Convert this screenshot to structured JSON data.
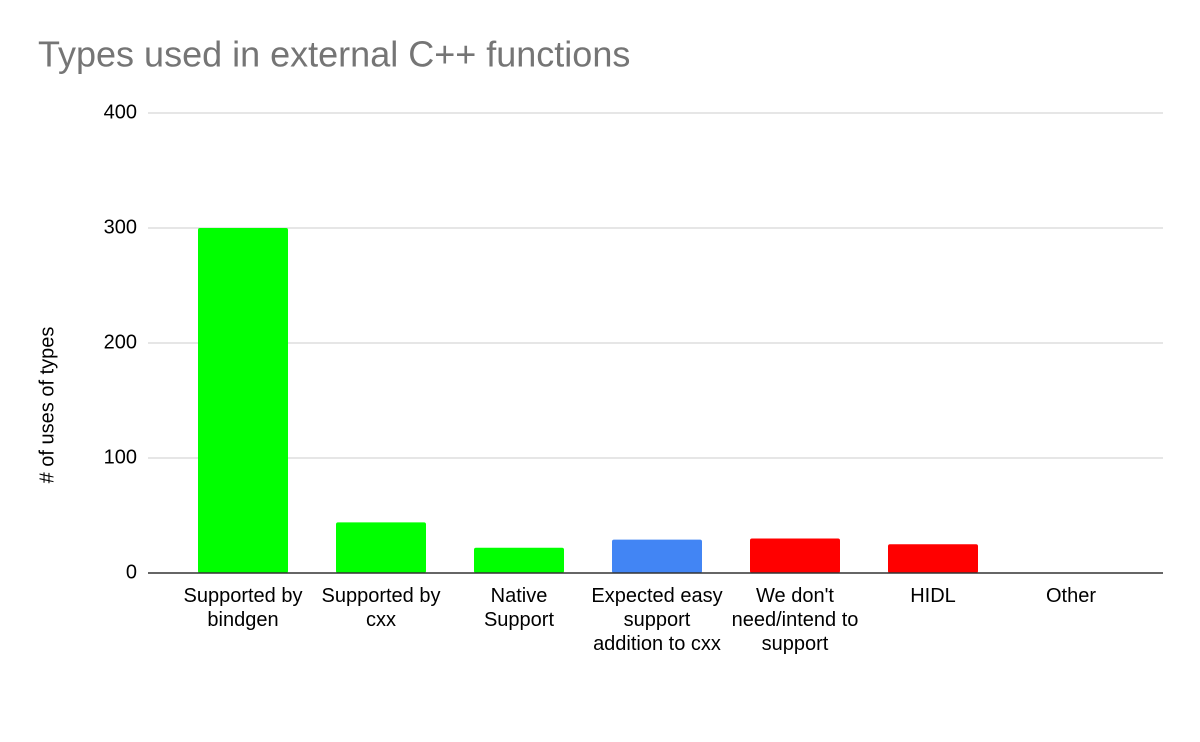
{
  "chart_data": {
    "type": "bar",
    "title": "Types used in external C++ functions",
    "y_label": "# of uses of types",
    "categories": [
      "Supported by bindgen",
      "Supported by cxx",
      "Native Support",
      "Expected easy support addition to cxx",
      "We don't need/intend to support",
      "HIDL",
      "Other"
    ],
    "values": [
      300,
      44,
      22,
      29,
      30,
      25,
      0
    ],
    "colors": [
      "#00ff00",
      "#00ff00",
      "#00ff00",
      "#4285f4",
      "#ff0000",
      "#ff0000",
      "#00ff00"
    ],
    "ylim": [
      0,
      400
    ],
    "yticks": [
      0,
      100,
      200,
      300,
      400
    ],
    "grid": true
  }
}
